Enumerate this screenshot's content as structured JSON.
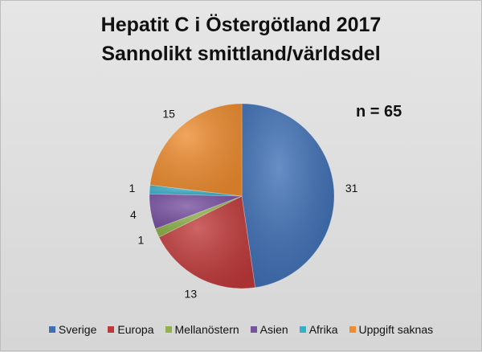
{
  "title_line1": "Hepatit C i Östergötland 2017",
  "title_line2": "Sannolikt smittland/världsdel",
  "n_text": "n = 65",
  "chart_data": {
    "type": "pie",
    "title": "Hepatit C i Östergötland 2017 Sannolikt smittland/världsdel",
    "categories": [
      "Sverige",
      "Europa",
      "Mellanöstern",
      "Asien",
      "Afrika",
      "Uppgift saknas"
    ],
    "values": [
      31,
      13,
      1,
      4,
      1,
      15
    ],
    "colors": [
      "#3e6fb5",
      "#c0393a",
      "#8fb34a",
      "#7851a1",
      "#3aaec7",
      "#ee8c2f"
    ],
    "legend_position": "bottom",
    "total_label": "n = 65"
  }
}
